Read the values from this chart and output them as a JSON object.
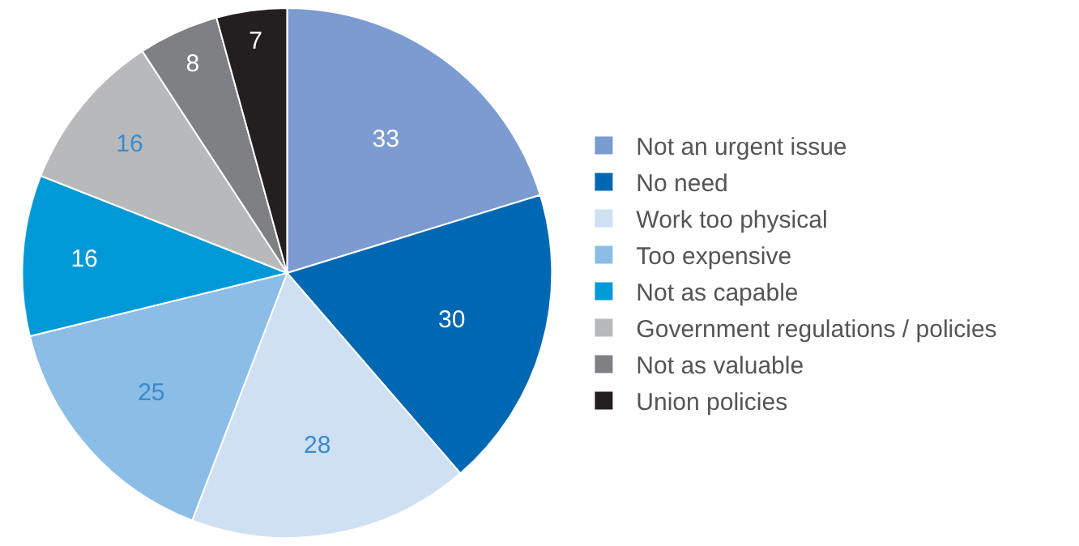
{
  "chart_data": {
    "type": "pie",
    "categories": [
      "Not an urgent issue",
      "No need",
      "Work too physical",
      "Too expensive",
      "Not as capable",
      "Government regulations / policies",
      "Not as valuable",
      "Union policies"
    ],
    "values": [
      33,
      30,
      28,
      25,
      16,
      16,
      8,
      7
    ],
    "colors": [
      "#7b9bd1",
      "#0068b3",
      "#cfe0f3",
      "#8bbde6",
      "#0099d8",
      "#b8b9bb",
      "#7f8083",
      "#231f20"
    ],
    "data_labels": true,
    "legend": "right"
  }
}
